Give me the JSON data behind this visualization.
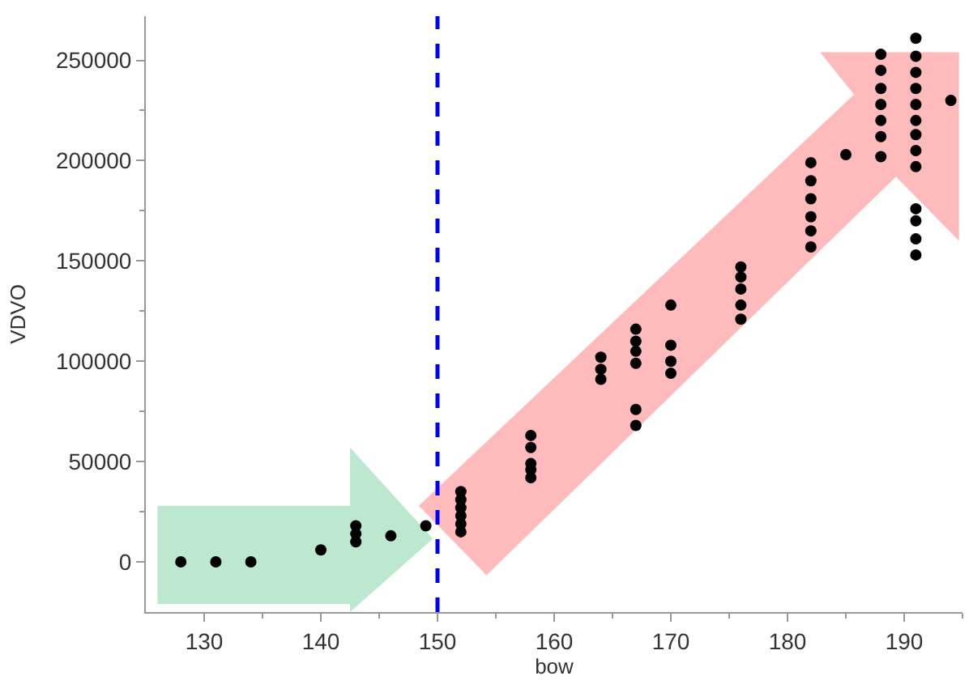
{
  "chart_data": {
    "type": "scatter",
    "xlabel": "bow",
    "ylabel": "VDVO",
    "xlim": [
      125,
      195
    ],
    "ylim": [
      -25000,
      272000
    ],
    "xticks": [
      130,
      140,
      150,
      160,
      170,
      180,
      190
    ],
    "yticks": [
      0,
      50000,
      100000,
      150000,
      200000,
      250000
    ],
    "grid": false,
    "marker": "circle",
    "ref_lines": [
      {
        "axis": "x",
        "value": 150,
        "color": "#0000ff",
        "line_style": "dashed"
      }
    ],
    "series": [
      {
        "color": "#000000",
        "x": [
          128,
          131,
          134,
          140,
          143,
          143,
          143,
          146,
          149,
          152,
          152,
          152,
          152,
          152,
          152,
          158,
          158,
          158,
          158,
          158,
          164,
          164,
          164,
          167,
          167,
          167,
          167,
          167,
          167,
          170,
          170,
          170,
          170,
          176,
          176,
          176,
          176,
          176,
          182,
          182,
          182,
          182,
          182,
          182,
          185,
          188,
          188,
          188,
          188,
          188,
          188,
          188,
          191,
          191,
          191,
          191,
          191,
          191,
          191,
          191,
          191,
          191,
          191,
          191,
          191,
          194
        ],
        "values": [
          0,
          0,
          0,
          6000,
          10000,
          14000,
          18000,
          13000,
          18000,
          15000,
          19000,
          23000,
          27000,
          31000,
          35000,
          42000,
          46000,
          49000,
          57000,
          63000,
          91000,
          96000,
          102000,
          68000,
          76000,
          99000,
          105000,
          110000,
          116000,
          94000,
          100000,
          108000,
          128000,
          121000,
          128000,
          136000,
          142000,
          147000,
          157000,
          165000,
          172000,
          181000,
          190000,
          199000,
          203000,
          202000,
          212000,
          220000,
          228000,
          236000,
          245000,
          253000,
          153000,
          161000,
          170000,
          176000,
          197000,
          205000,
          213000,
          220000,
          228000,
          236000,
          244000,
          252000,
          261000,
          230000
        ]
      }
    ]
  }
}
